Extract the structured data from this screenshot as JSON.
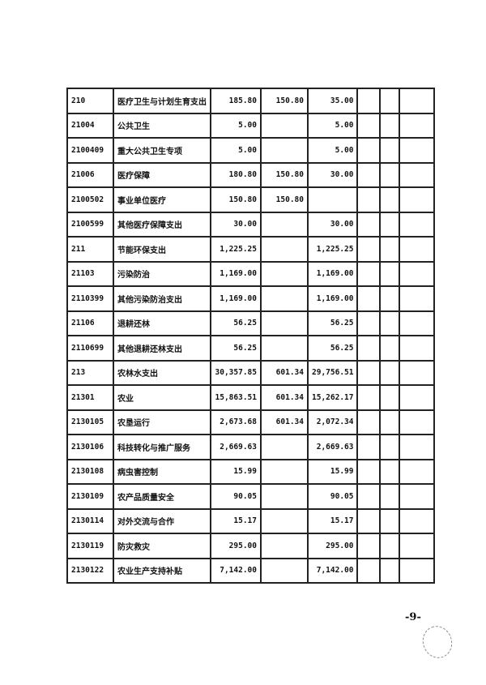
{
  "rows": [
    {
      "code": "210",
      "name": "医疗卫生与计划生育支出",
      "total": "185.80",
      "basic": "150.80",
      "project": "35.00"
    },
    {
      "code": "21004",
      "name": "公共卫生",
      "total": "5.00",
      "basic": "",
      "project": "5.00"
    },
    {
      "code": "2100409",
      "name": "重大公共卫生专项",
      "total": "5.00",
      "basic": "",
      "project": "5.00"
    },
    {
      "code": "21006",
      "name": "医疗保障",
      "total": "180.80",
      "basic": "150.80",
      "project": "30.00"
    },
    {
      "code": "2100502",
      "name": "事业单位医疗",
      "total": "150.80",
      "basic": "150.80",
      "project": ""
    },
    {
      "code": "2100599",
      "name": "其他医疗保障支出",
      "total": "30.00",
      "basic": "",
      "project": "30.00"
    },
    {
      "code": "211",
      "name": "节能环保支出",
      "total": "1,225.25",
      "basic": "",
      "project": "1,225.25"
    },
    {
      "code": "21103",
      "name": "污染防治",
      "total": "1,169.00",
      "basic": "",
      "project": "1,169.00"
    },
    {
      "code": "2110399",
      "name": "其他污染防治支出",
      "total": "1,169.00",
      "basic": "",
      "project": "1,169.00"
    },
    {
      "code": "21106",
      "name": "退耕还林",
      "total": "56.25",
      "basic": "",
      "project": "56.25"
    },
    {
      "code": "2110699",
      "name": "其他退耕还林支出",
      "total": "56.25",
      "basic": "",
      "project": "56.25"
    },
    {
      "code": "213",
      "name": "农林水支出",
      "total": "30,357.85",
      "basic": "601.34",
      "project": "29,756.51"
    },
    {
      "code": "21301",
      "name": "农业",
      "total": "15,863.51",
      "basic": "601.34",
      "project": "15,262.17"
    },
    {
      "code": "2130105",
      "name": "农垦运行",
      "total": "2,673.68",
      "basic": "601.34",
      "project": "2,072.34"
    },
    {
      "code": "2130106",
      "name": "科技转化与推广服务",
      "total": "2,669.63",
      "basic": "",
      "project": "2,669.63"
    },
    {
      "code": "2130108",
      "name": "病虫害控制",
      "total": "15.99",
      "basic": "",
      "project": "15.99"
    },
    {
      "code": "2130109",
      "name": "农产品质量安全",
      "total": "90.05",
      "basic": "",
      "project": "90.05"
    },
    {
      "code": "2130114",
      "name": "对外交流与合作",
      "total": "15.17",
      "basic": "",
      "project": "15.17"
    },
    {
      "code": "2130119",
      "name": "防灾救灾",
      "total": "295.00",
      "basic": "",
      "project": "295.00"
    },
    {
      "code": "2130122",
      "name": "农业生产支持补贴",
      "total": "7,142.00",
      "basic": "",
      "project": "7,142.00"
    }
  ],
  "page_number": "-9-"
}
